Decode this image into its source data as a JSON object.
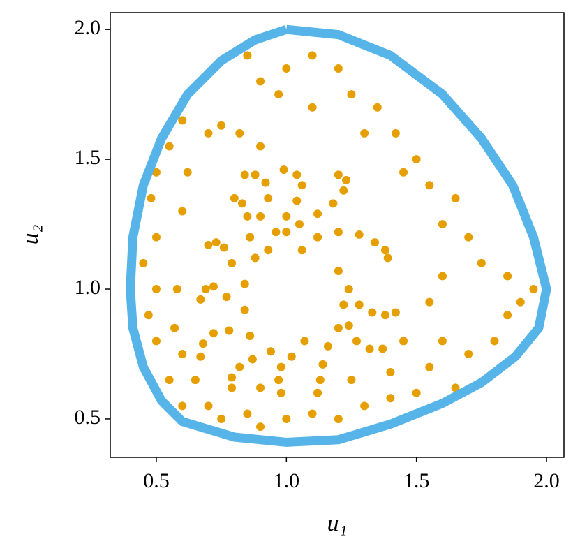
{
  "chart_data": {
    "type": "scatter",
    "xlabel": "u₁",
    "ylabel": "u₂",
    "xlim": [
      0.323,
      2.067
    ],
    "ylim": [
      0.352,
      2.065
    ],
    "xticks": [
      0.5,
      1.0,
      1.5,
      2.0
    ],
    "yticks": [
      0.5,
      1.0,
      1.5,
      2.0
    ],
    "series": [
      {
        "color": "#e69f00",
        "line": false,
        "x": [
          0.93,
          0.96,
          1.0,
          1.04,
          1.06,
          1.04,
          0.99,
          1.0,
          1.05,
          1.12,
          1.18,
          1.22,
          1.23,
          1.2,
          1.06,
          1.12,
          1.2,
          1.28,
          1.34,
          1.38,
          1.39,
          1.2,
          1.24,
          1.28,
          1.33,
          1.38,
          1.42,
          1.22,
          1.24,
          1.27,
          1.32,
          1.37,
          1.2,
          1.16,
          1.14,
          1.13,
          1.12,
          1.07,
          1.02,
          0.98,
          0.97,
          0.98,
          0.94,
          0.87,
          0.82,
          0.79,
          0.79,
          0.86,
          0.78,
          0.72,
          0.68,
          0.67,
          0.84,
          0.77,
          0.72,
          0.69,
          0.67,
          0.84,
          0.79,
          0.76,
          0.73,
          0.7,
          0.88,
          0.86,
          0.85,
          0.83,
          0.8,
          0.9,
          0.93,
          0.92,
          0.88,
          0.84,
          0.9,
          0.82,
          0.75,
          0.7,
          0.6,
          0.55,
          0.5,
          0.48,
          0.5,
          0.45,
          0.5,
          0.47,
          0.5,
          0.45,
          0.55,
          0.6,
          0.7,
          0.75,
          0.85,
          0.9,
          1.0,
          1.1,
          1.2,
          1.3,
          1.4,
          1.5,
          1.55,
          1.65,
          1.7,
          1.8,
          1.85,
          1.9,
          1.95,
          1.85,
          1.75,
          1.7,
          1.6,
          1.65,
          1.55,
          1.5,
          1.42,
          1.35,
          1.25,
          1.2,
          1.1,
          1.0,
          0.9,
          0.85,
          0.97,
          1.1,
          1.3,
          1.45,
          1.6,
          1.55,
          1.45,
          1.6,
          1.4,
          1.25,
          0.6,
          0.62,
          0.58,
          0.57,
          0.6,
          0.65,
          0.9
        ],
        "values": [
          1.15,
          1.22,
          1.28,
          1.34,
          1.4,
          1.44,
          1.46,
          1.22,
          1.25,
          1.29,
          1.33,
          1.38,
          1.42,
          1.44,
          1.15,
          1.2,
          1.22,
          1.21,
          1.18,
          1.15,
          1.12,
          1.07,
          1.0,
          0.94,
          0.91,
          0.9,
          0.91,
          0.94,
          0.86,
          0.8,
          0.77,
          0.77,
          0.85,
          0.78,
          0.71,
          0.65,
          0.6,
          0.8,
          0.74,
          0.7,
          0.65,
          0.6,
          0.76,
          0.73,
          0.7,
          0.66,
          0.62,
          0.82,
          0.84,
          0.83,
          0.79,
          0.74,
          0.92,
          0.97,
          1.01,
          1.0,
          0.96,
          1.02,
          1.1,
          1.16,
          1.18,
          1.17,
          1.12,
          1.2,
          1.28,
          1.33,
          1.35,
          1.28,
          1.35,
          1.41,
          1.44,
          1.44,
          1.55,
          1.6,
          1.63,
          1.6,
          1.65,
          1.55,
          1.45,
          1.35,
          1.2,
          1.1,
          1.0,
          0.9,
          0.8,
          0.7,
          0.65,
          0.55,
          0.55,
          0.5,
          0.52,
          0.47,
          0.5,
          0.52,
          0.5,
          0.55,
          0.58,
          0.6,
          0.7,
          0.62,
          0.75,
          0.8,
          0.9,
          0.95,
          1.0,
          1.05,
          1.1,
          1.2,
          1.25,
          1.35,
          1.4,
          1.5,
          1.6,
          1.7,
          1.75,
          1.85,
          1.9,
          1.85,
          1.8,
          1.9,
          1.75,
          1.7,
          1.6,
          1.45,
          1.05,
          0.95,
          0.8,
          0.8,
          0.68,
          0.65,
          1.3,
          1.45,
          1.0,
          0.85,
          0.75,
          0.65,
          0.62
        ]
      },
      {
        "color": "#56b4e9",
        "line": true,
        "x": [
          1.0,
          1.2,
          1.4,
          1.6,
          1.75,
          1.87,
          1.95,
          2.0,
          1.97,
          1.88,
          1.75,
          1.6,
          1.4,
          1.2,
          1.0,
          0.8,
          0.6,
          0.52,
          0.45,
          0.41,
          0.4,
          0.41,
          0.45,
          0.52,
          0.62,
          0.75,
          0.88,
          1.0
        ],
        "values": [
          2.0,
          1.98,
          1.9,
          1.75,
          1.58,
          1.4,
          1.2,
          1.0,
          0.85,
          0.74,
          0.64,
          0.56,
          0.48,
          0.42,
          0.41,
          0.43,
          0.49,
          0.57,
          0.7,
          0.85,
          1.0,
          1.2,
          1.4,
          1.58,
          1.75,
          1.88,
          1.96,
          2.0
        ]
      }
    ]
  }
}
